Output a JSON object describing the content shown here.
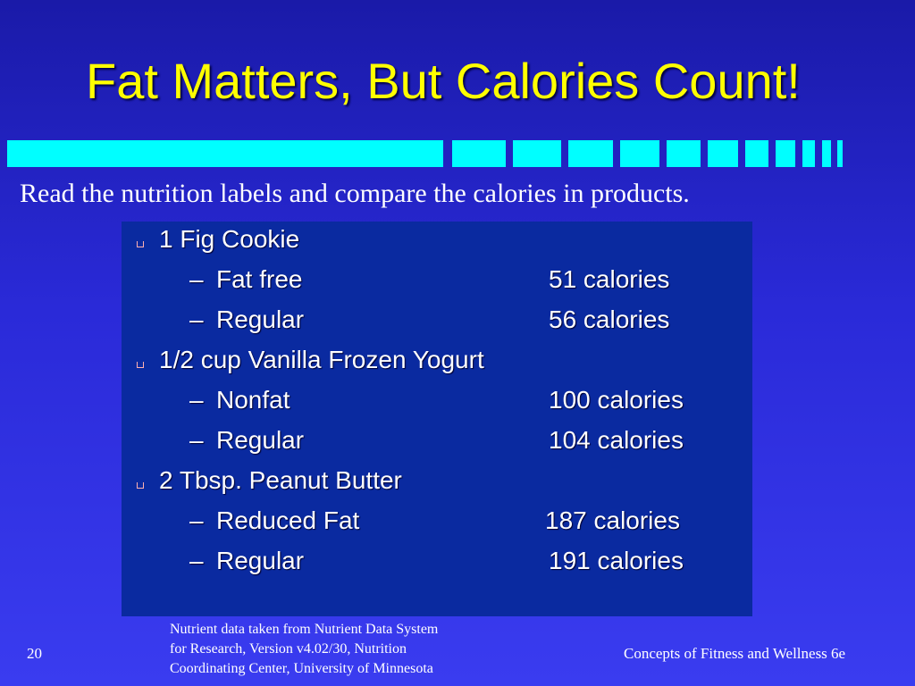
{
  "slide": {
    "title": "Fat Matters, But Calories Count!",
    "subtitle": "Read the nutrition labels and compare the calories in products.",
    "items": [
      {
        "label": "1 Fig Cookie",
        "level": 1
      },
      {
        "label": "Fat free",
        "value": "51 calories",
        "level": 2
      },
      {
        "label": "Regular",
        "value": "56 calories",
        "level": 2
      },
      {
        "label": "1/2 cup Vanilla Frozen Yogurt",
        "level": 1
      },
      {
        "label": "Nonfat",
        "value": "100 calories",
        "level": 2
      },
      {
        "label": "Regular",
        "value": "104 calories",
        "level": 2
      },
      {
        "label": "2 Tbsp. Peanut Butter",
        "level": 1
      },
      {
        "label": "Reduced Fat",
        "value": "187 calories",
        "level": 2
      },
      {
        "label": "Regular",
        "value": "191 calories",
        "level": 2
      }
    ],
    "source_lines": [
      "Nutrient data taken from Nutrient Data System",
      "for Research, Version v4.02/30, Nutrition",
      "Coordinating Center, University of Minnesota"
    ],
    "page_number": "20",
    "footer_text": "Concepts of Fitness and Wellness 6e",
    "dash_glyph": "–"
  },
  "colors": {
    "title": "#ffff00",
    "bars": "#00ffff",
    "panel": "#0a2aa0",
    "background": "#2a2ad8"
  }
}
